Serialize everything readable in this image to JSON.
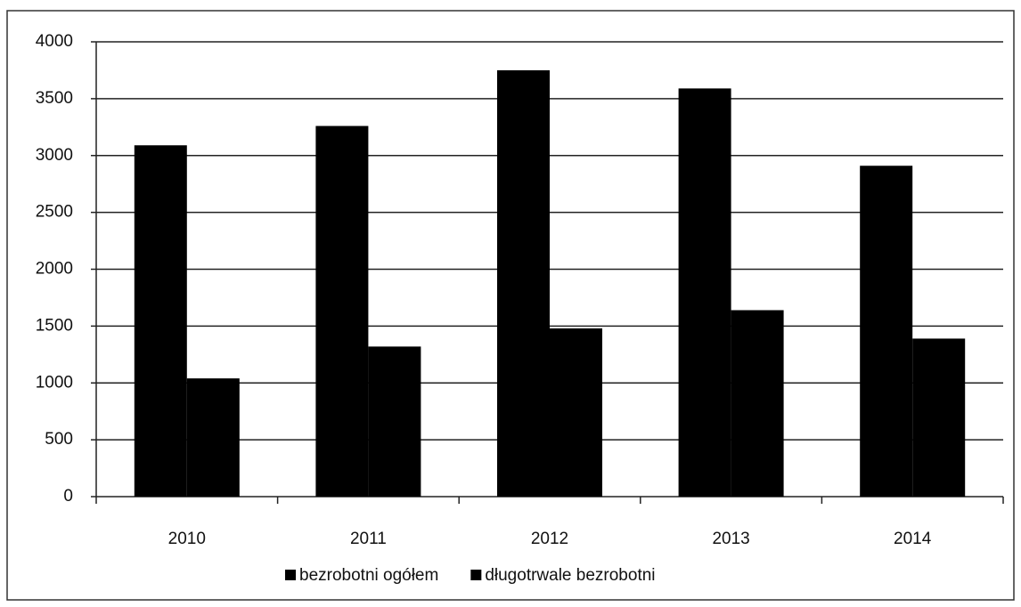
{
  "chart_data": {
    "type": "bar",
    "categories": [
      "2010",
      "2011",
      "2012",
      "2013",
      "2014"
    ],
    "series": [
      {
        "name": "bezrobotni ogółem",
        "color": "#000000",
        "values": [
          3090,
          3260,
          3750,
          3590,
          2910
        ]
      },
      {
        "name": "długotrwale bezrobotni",
        "color": "#000000",
        "values": [
          1040,
          1320,
          1480,
          1640,
          1390
        ]
      }
    ],
    "ylim": [
      0,
      4000
    ],
    "yticks": [
      0,
      500,
      1000,
      1500,
      2000,
      2500,
      3000,
      3500,
      4000
    ],
    "grid": true,
    "legend": "bottom"
  }
}
